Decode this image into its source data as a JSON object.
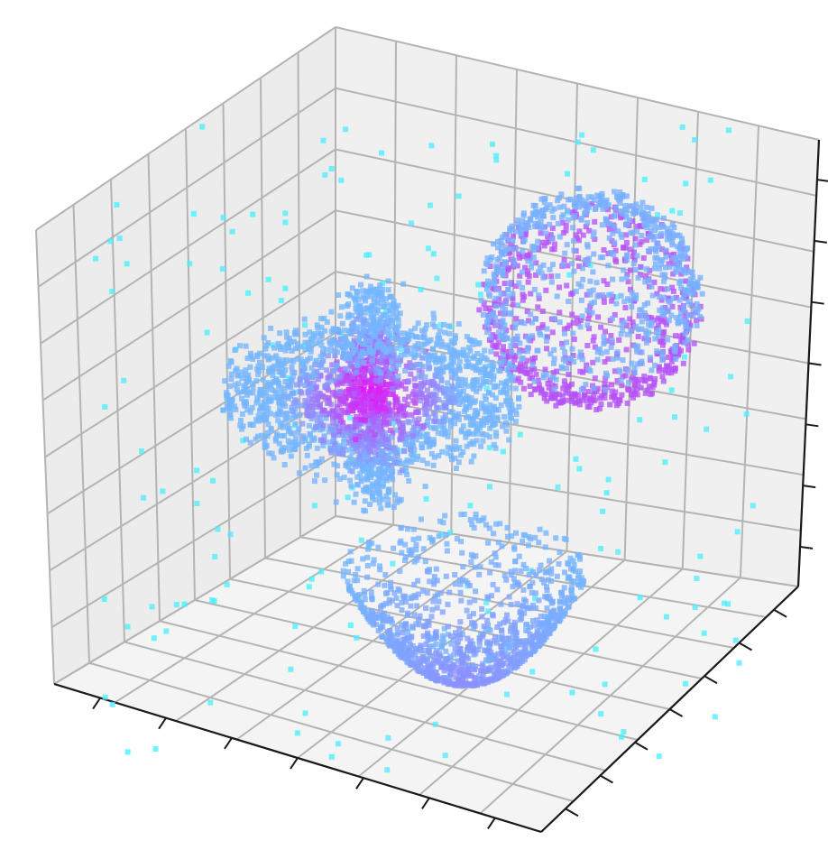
{
  "chart_data": {
    "type": "scatter",
    "projection": "3d",
    "title": "",
    "xlabel": "",
    "ylabel": "",
    "zlabel": "",
    "tick_labels_visible": false,
    "grid": true,
    "legend": "none",
    "colormap": "cool",
    "pane_colors": {
      "left_wall": "#ececec",
      "back_wall": "#f0f0f0",
      "floor": "#f4f4f4",
      "grid": "#b4b4b4",
      "axis": "#1a1a1a"
    },
    "point_colors": {
      "outer_shell": "#74b6ff",
      "mid": "#8f8bff",
      "core": "#e214f4",
      "noise": "#3ff4fd"
    },
    "clusters": [
      {
        "shape": "disk with vertical rod (cross)",
        "approx_points": 2800,
        "disk_radius_frac": 0.18,
        "rod_half_height_frac": 0.16,
        "color_range": [
          "#74b6ff",
          "#e214f4"
        ]
      },
      {
        "shape": "sphere",
        "approx_points": 1600,
        "radius_frac": 0.14,
        "color_range": [
          "#74b6ff",
          "#b35cff"
        ]
      },
      {
        "shape": "paraboloid bowl",
        "approx_points": 1300,
        "radius_frac": 0.16,
        "color_range": [
          "#74b6ff",
          "#a66bff"
        ]
      },
      {
        "shape": "uniform background noise",
        "approx_points": 180,
        "color_range": [
          "#3ff4fd",
          "#6fdcff"
        ]
      }
    ],
    "x_ticks": 7,
    "y_ticks": 7,
    "z_ticks": 7
  }
}
